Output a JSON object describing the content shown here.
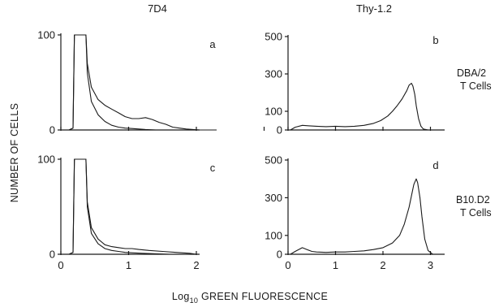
{
  "figure": {
    "col_titles": [
      "7D4",
      "Thy-1.2"
    ],
    "row_labels": [
      [
        "DBA/2",
        "T Cells"
      ],
      [
        "B10.D2",
        "T Cells"
      ]
    ],
    "ylabel": "NUMBER OF CELLS",
    "xlabel_prefix": "Log",
    "xlabel_sub": "10",
    "xlabel_suffix": " GREEN FLUORESCENCE"
  },
  "chart_data": [
    {
      "type": "line",
      "panel": "a",
      "column": "7D4",
      "row": "DBA/2 T Cells",
      "xlim": [
        0,
        3.2
      ],
      "ylim": [
        0,
        100
      ],
      "xticks": [
        0,
        1,
        2,
        3
      ],
      "xtick_labels": [
        "",
        "",
        "",
        ""
      ],
      "yticks": [
        0,
        100
      ],
      "ytick_labels": [
        "0",
        "100"
      ],
      "series": [
        {
          "x": [
            0.02,
            0.12,
            0.18,
            0.2,
            0.37,
            0.39,
            0.45,
            0.55,
            0.65,
            0.75,
            0.85,
            0.95,
            1.05,
            1.15,
            1.25,
            1.35,
            1.45,
            1.55,
            1.65,
            1.75,
            1.85,
            1.95,
            2.05,
            2.15,
            2.3
          ],
          "y": [
            0,
            0,
            2,
            100,
            100,
            70,
            45,
            32,
            26,
            22,
            18,
            14,
            12,
            12,
            13,
            11,
            8,
            6,
            3,
            2,
            1,
            0.5,
            0,
            0,
            0
          ]
        },
        {
          "x": [
            0.02,
            0.12,
            0.18,
            0.2,
            0.37,
            0.39,
            0.45,
            0.55,
            0.65,
            0.75,
            0.85,
            0.95,
            1.05,
            1.15,
            1.25,
            1.4,
            1.6,
            1.8
          ],
          "y": [
            0,
            0,
            2,
            100,
            100,
            60,
            30,
            16,
            9,
            5,
            3,
            2,
            1.5,
            1,
            0.5,
            0,
            0,
            0
          ]
        }
      ]
    },
    {
      "type": "line",
      "panel": "b",
      "column": "Thy-1.2",
      "row": "DBA/2 T Cells",
      "xlim": [
        0,
        3.3
      ],
      "ylim": [
        0,
        500
      ],
      "xticks": [
        0,
        1,
        2,
        3
      ],
      "xtick_labels": [
        "",
        "",
        "",
        ""
      ],
      "yticks": [
        0,
        100,
        300,
        500
      ],
      "ytick_labels": [
        "0",
        "100",
        "300",
        "500"
      ],
      "series": [
        {
          "x": [
            0.05,
            0.15,
            0.3,
            0.45,
            0.6,
            0.8,
            1.0,
            1.2,
            1.4,
            1.6,
            1.8,
            1.95,
            2.1,
            2.2,
            2.3,
            2.4,
            2.5,
            2.55,
            2.6,
            2.63,
            2.67,
            2.7,
            2.75,
            2.8,
            2.85,
            2.95
          ],
          "y": [
            0,
            15,
            25,
            22,
            20,
            18,
            20,
            18,
            20,
            25,
            35,
            50,
            75,
            100,
            130,
            165,
            210,
            240,
            250,
            235,
            190,
            130,
            60,
            20,
            5,
            0
          ]
        }
      ]
    },
    {
      "type": "line",
      "panel": "c",
      "column": "7D4",
      "row": "B10.D2 T Cells",
      "xlim": [
        0,
        3.2
      ],
      "ylim": [
        0,
        100
      ],
      "xticks": [
        0,
        1,
        2
      ],
      "xtick_labels": [
        "0",
        "1",
        "2"
      ],
      "yticks": [
        0,
        100
      ],
      "ytick_labels": [
        "0",
        "100"
      ],
      "series": [
        {
          "x": [
            0.02,
            0.12,
            0.18,
            0.2,
            0.37,
            0.39,
            0.45,
            0.55,
            0.65,
            0.75,
            0.85,
            0.95,
            1.05,
            1.15,
            1.3,
            1.5,
            1.7,
            1.9,
            2.0
          ],
          "y": [
            0,
            0,
            2,
            100,
            100,
            55,
            28,
            16,
            10,
            8,
            7,
            6,
            6,
            5,
            4,
            3,
            2,
            1,
            0
          ]
        },
        {
          "x": [
            0.02,
            0.12,
            0.18,
            0.2,
            0.37,
            0.39,
            0.45,
            0.55,
            0.65,
            0.75,
            0.85,
            0.95,
            1.05,
            1.2,
            1.4,
            1.6,
            1.8
          ],
          "y": [
            0,
            0,
            2,
            100,
            100,
            50,
            22,
            11,
            6,
            4,
            3,
            2,
            1.5,
            1,
            0.5,
            0,
            0
          ]
        }
      ]
    },
    {
      "type": "line",
      "panel": "d",
      "column": "Thy-1.2",
      "row": "B10.D2 T Cells",
      "xlim": [
        0,
        3.3
      ],
      "ylim": [
        0,
        500
      ],
      "xticks": [
        0,
        1,
        2,
        3
      ],
      "xtick_labels": [
        "0",
        "1",
        "2",
        "3"
      ],
      "yticks": [
        0,
        100,
        300,
        500
      ],
      "ytick_labels": [
        "0",
        "100",
        "300",
        "500"
      ],
      "series": [
        {
          "x": [
            0.05,
            0.15,
            0.3,
            0.4,
            0.5,
            0.6,
            0.8,
            1.0,
            1.2,
            1.4,
            1.6,
            1.8,
            2.0,
            2.2,
            2.35,
            2.45,
            2.55,
            2.6,
            2.65,
            2.7,
            2.73,
            2.78,
            2.82,
            2.88,
            2.95,
            3.05
          ],
          "y": [
            0,
            15,
            35,
            25,
            15,
            12,
            10,
            12,
            12,
            15,
            18,
            25,
            35,
            60,
            100,
            160,
            250,
            310,
            370,
            400,
            380,
            300,
            200,
            80,
            20,
            0
          ]
        }
      ]
    }
  ]
}
